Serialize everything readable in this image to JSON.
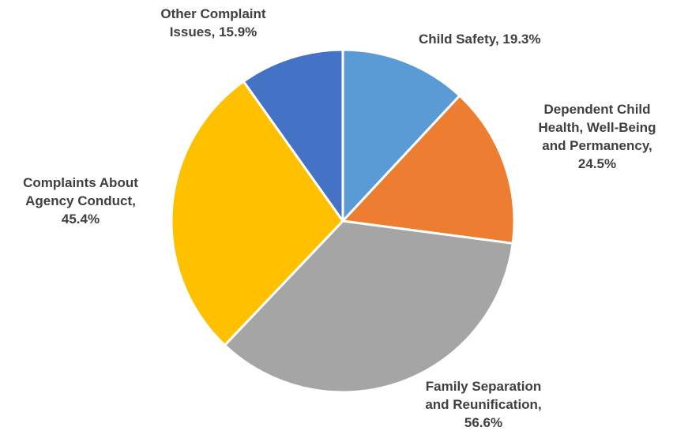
{
  "chart_data": {
    "type": "pie",
    "title": "",
    "slices": [
      {
        "label_lines": [
          "Child Safety, 19.3%"
        ],
        "name": "Child Safety",
        "value": 19.3,
        "color": "#5B9BD5"
      },
      {
        "label_lines": [
          "Dependent Child",
          "Health, Well-Being",
          "and Permanency,",
          "24.5%"
        ],
        "name": "Dependent Child Health, Well-Being and Permanency",
        "value": 24.5,
        "color": "#ED7D31"
      },
      {
        "label_lines": [
          "Family Separation",
          "and Reunification,",
          "56.6%"
        ],
        "name": "Family Separation and Reunification",
        "value": 56.6,
        "color": "#A5A5A5"
      },
      {
        "label_lines": [
          "Complaints About",
          "Agency Conduct,",
          "45.4%"
        ],
        "name": "Complaints About Agency Conduct",
        "value": 45.4,
        "color": "#FFC000"
      },
      {
        "label_lines": [
          "Other Complaint",
          "Issues, 15.9%"
        ],
        "name": "Other Complaint Issues",
        "value": 15.9,
        "color": "#4472C4"
      }
    ],
    "start_angle": "12 o'clock",
    "direction": "clockwise",
    "legend": "none"
  }
}
